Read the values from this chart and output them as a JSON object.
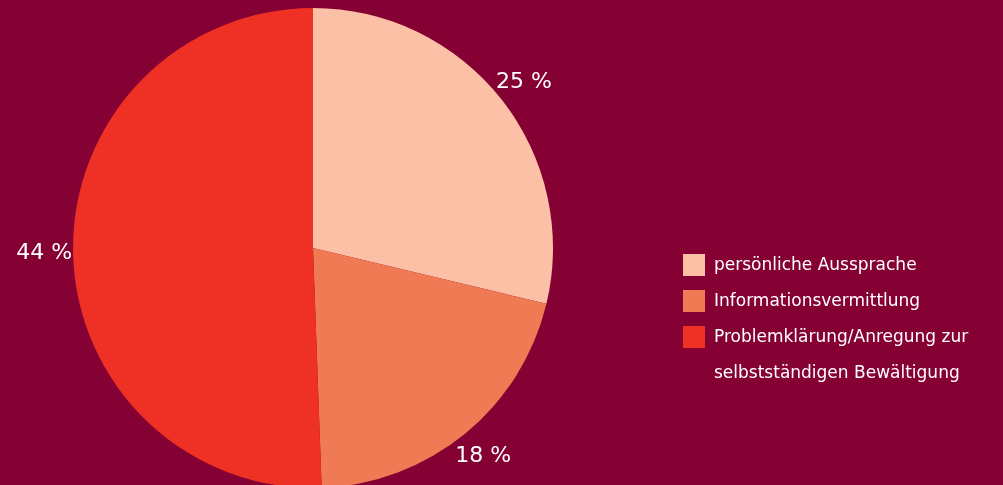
{
  "chart_data": {
    "type": "pie",
    "categories": [
      "persönliche Aussprache",
      "Informationsvermittlung",
      "Problemklärung/Anregung zur selbstständigen Bewältigung"
    ],
    "values": [
      25,
      18,
      44
    ],
    "colors": [
      "#fcc0a6",
      "#f07a54",
      "#ee3124"
    ],
    "value_labels": [
      "25 %",
      "18 %",
      "44 %"
    ],
    "legend": "right"
  }
}
